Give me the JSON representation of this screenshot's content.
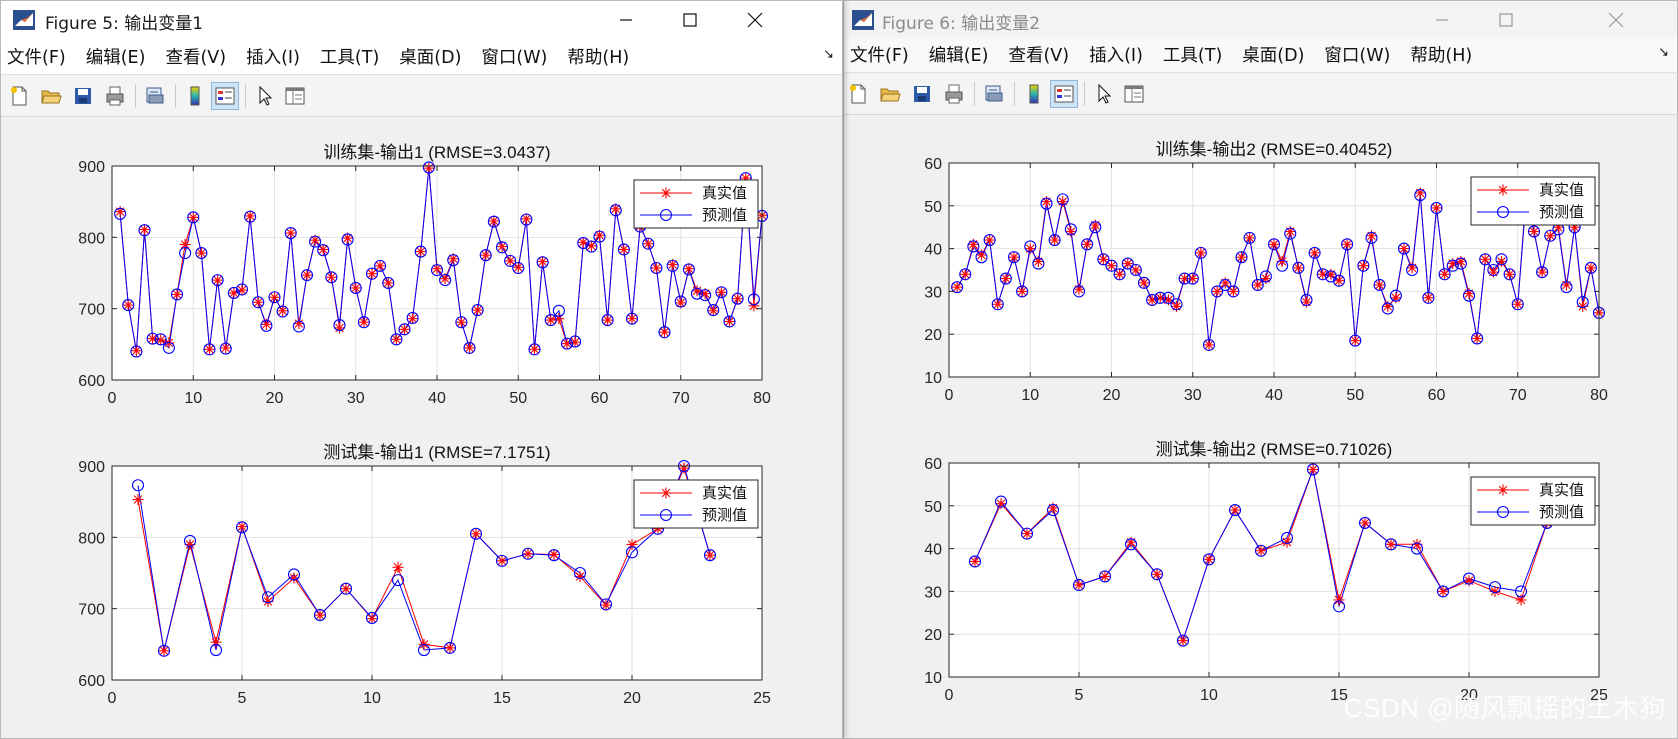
{
  "windows": [
    {
      "title": "Figure 5: 输出变量1",
      "menu": [
        "文件(F)",
        "编辑(E)",
        "查看(V)",
        "插入(I)",
        "工具(T)",
        "桌面(D)",
        "窗口(W)",
        "帮助(H)"
      ],
      "toolbar": [
        "new-file-icon",
        "open-folder-icon",
        "save-icon",
        "print-icon",
        "print-preview-icon",
        "colorbar-icon",
        "legend-icon",
        "pointer-icon",
        "property-editor-icon"
      ]
    },
    {
      "title": "Figure 6: 输出变量2",
      "menu": [
        "文件(F)",
        "编辑(E)",
        "查看(V)",
        "插入(I)",
        "工具(T)",
        "桌面(D)",
        "窗口(W)",
        "帮助(H)"
      ],
      "toolbar": [
        "new-file-icon",
        "open-folder-icon",
        "save-icon",
        "print-icon",
        "print-preview-icon",
        "colorbar-icon",
        "legend-icon",
        "pointer-icon",
        "property-editor-icon"
      ]
    }
  ],
  "watermark": "CSDN @随风飘摇的土木狗",
  "colors": {
    "real": "#ff0000",
    "pred": "#0000ff"
  },
  "chart_data": [
    {
      "type": "line",
      "title": "训练集-输出1 (RMSE=3.0437)",
      "xlim": [
        0,
        80
      ],
      "ylim": [
        600,
        900
      ],
      "xticks": [
        0,
        10,
        20,
        30,
        40,
        50,
        60,
        70,
        80
      ],
      "yticks": [
        600,
        700,
        800,
        900
      ],
      "grid": true,
      "legend": "top-right",
      "series": [
        {
          "name": "真实值",
          "marker": "asterisk",
          "values": [
            836,
            705,
            641,
            811,
            658,
            656,
            652,
            720,
            790,
            828,
            778,
            643,
            740,
            645,
            722,
            726,
            830,
            709,
            678,
            716,
            697,
            806,
            679,
            747,
            796,
            783,
            744,
            673,
            799,
            729,
            681,
            749,
            760,
            736,
            657,
            671,
            686,
            780,
            897,
            756,
            742,
            770,
            681,
            645,
            698,
            775,
            823,
            787,
            767,
            758,
            826,
            643,
            766,
            684,
            686,
            651,
            653,
            793,
            788,
            803,
            684,
            840,
            783,
            686,
            816,
            791,
            757,
            667,
            762,
            708,
            756,
            725,
            721,
            697,
            723,
            682,
            714,
            883,
            704,
            831
          ]
        },
        {
          "name": "预测值",
          "marker": "circle",
          "values": [
            833,
            705,
            640,
            810,
            658,
            657,
            645,
            720,
            778,
            828,
            778,
            643,
            740,
            644,
            722,
            727,
            829,
            709,
            676,
            716,
            696,
            806,
            675,
            747,
            794,
            782,
            744,
            677,
            797,
            729,
            681,
            749,
            760,
            736,
            657,
            671,
            687,
            780,
            898,
            754,
            740,
            768,
            681,
            645,
            698,
            775,
            822,
            786,
            767,
            757,
            825,
            643,
            765,
            684,
            697,
            651,
            654,
            792,
            787,
            801,
            684,
            838,
            783,
            686,
            815,
            791,
            757,
            667,
            760,
            710,
            755,
            721,
            719,
            698,
            723,
            682,
            714,
            883,
            713,
            830
          ]
        }
      ]
    },
    {
      "type": "line",
      "title": "测试集-输出1 (RMSE=7.1751)",
      "xlim": [
        0,
        25
      ],
      "ylim": [
        600,
        900
      ],
      "xticks": [
        0,
        5,
        10,
        15,
        20,
        25
      ],
      "yticks": [
        600,
        700,
        800,
        900
      ],
      "grid": true,
      "legend": "top-right",
      "series": [
        {
          "name": "真实值",
          "marker": "asterisk",
          "values": [
            853,
            641,
            790,
            653,
            815,
            710,
            743,
            691,
            728,
            686,
            758,
            650,
            645,
            805,
            767,
            777,
            776,
            745,
            705,
            790,
            812,
            897,
            775
          ]
        },
        {
          "name": "预测值",
          "marker": "circle",
          "values": [
            873,
            641,
            795,
            642,
            814,
            716,
            748,
            691,
            728,
            687,
            740,
            642,
            645,
            805,
            767,
            777,
            775,
            750,
            706,
            779,
            812,
            900,
            775
          ]
        }
      ]
    },
    {
      "type": "line",
      "title": "训练集-输出2 (RMSE=0.40452)",
      "xlim": [
        0,
        80
      ],
      "ylim": [
        10,
        60
      ],
      "xticks": [
        0,
        10,
        20,
        30,
        40,
        50,
        60,
        70,
        80
      ],
      "yticks": [
        10,
        20,
        30,
        40,
        50,
        60
      ],
      "grid": true,
      "legend": "top-right",
      "series": [
        {
          "name": "真实值",
          "marker": "asterisk",
          "values": [
            31,
            34,
            41,
            38.5,
            42,
            27,
            33,
            38,
            30,
            40,
            37,
            51,
            42,
            51,
            44,
            30.5,
            41,
            45.5,
            37.5,
            36,
            34,
            36.5,
            35,
            32,
            28,
            28.5,
            28,
            26.5,
            33,
            33,
            39,
            17.5,
            30,
            32,
            30,
            38,
            42.5,
            31.5,
            33,
            41,
            37,
            44,
            35.5,
            27.5,
            39,
            34,
            34,
            32.5,
            41,
            18.5,
            36,
            43,
            31.5,
            26.5,
            28.5,
            40,
            35.5,
            53,
            28.5,
            49.5,
            34,
            36.5,
            37,
            29.5,
            19,
            37.5,
            34.5,
            37,
            34,
            27,
            52,
            44,
            34.5,
            43,
            45,
            31.5,
            45,
            26.5,
            35.5,
            25
          ]
        },
        {
          "name": "预测值",
          "marker": "circle",
          "values": [
            31,
            34,
            40.5,
            38,
            42,
            27,
            33,
            38,
            30,
            40.5,
            36.5,
            50.5,
            42,
            51.5,
            44.5,
            30,
            41,
            45,
            37.5,
            36,
            34,
            36.5,
            35,
            32,
            28,
            28.5,
            28.5,
            27,
            33,
            33,
            39,
            17.5,
            30,
            31.5,
            30,
            38,
            42.5,
            31.5,
            33.5,
            41,
            36,
            43.5,
            35.5,
            28,
            39,
            34,
            33.5,
            32.5,
            41,
            18.5,
            36,
            42.5,
            31.5,
            26,
            29,
            40,
            35,
            52.5,
            28.5,
            49.5,
            34,
            36,
            36.5,
            29,
            19,
            37.5,
            35,
            37.5,
            34,
            27,
            51,
            44,
            34.5,
            43,
            44.5,
            31,
            45,
            27.5,
            35.5,
            25
          ]
        }
      ]
    },
    {
      "type": "line",
      "title": "测试集-输出2 (RMSE=0.71026)",
      "xlim": [
        0,
        25
      ],
      "ylim": [
        10,
        60
      ],
      "xticks": [
        0,
        5,
        10,
        15,
        20,
        25
      ],
      "yticks": [
        10,
        20,
        30,
        40,
        50,
        60
      ],
      "grid": true,
      "legend": "top-right",
      "series": [
        {
          "name": "真实值",
          "marker": "asterisk",
          "values": [
            37,
            50.5,
            43.5,
            49.5,
            31.5,
            33.5,
            41.5,
            34,
            18.5,
            37.5,
            49,
            39.5,
            41.5,
            58.5,
            28,
            46,
            41,
            41,
            30,
            32.5,
            30,
            28,
            46
          ]
        },
        {
          "name": "预测值",
          "marker": "circle",
          "values": [
            37,
            51,
            43.5,
            49,
            31.5,
            33.5,
            41,
            34,
            18.5,
            37.5,
            49,
            39.5,
            42.5,
            58.5,
            26.5,
            46,
            41,
            40,
            30,
            33,
            31,
            30,
            46
          ]
        }
      ]
    }
  ]
}
